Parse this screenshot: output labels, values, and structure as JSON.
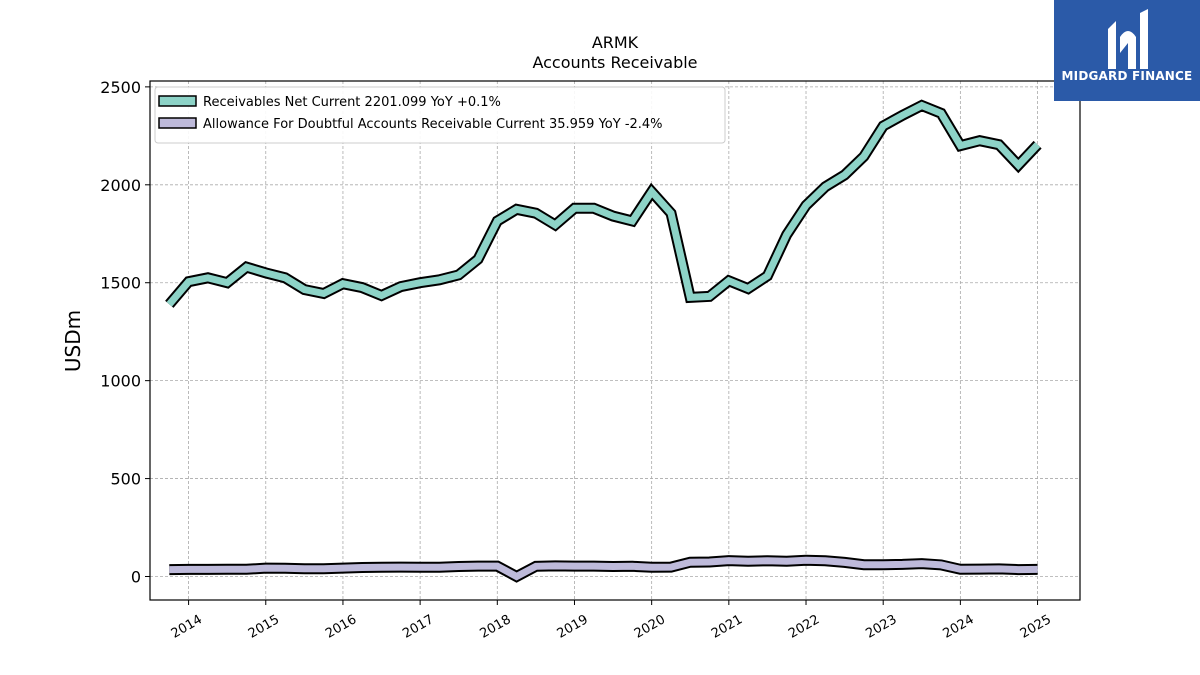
{
  "chart_data": {
    "type": "line",
    "title": "ARMK",
    "subtitle": "Accounts Receivable",
    "ylabel": "USDm",
    "xlabel": "",
    "ylim": [
      -120,
      2530
    ],
    "xlim": [
      2013.5,
      2025.55
    ],
    "yticks": [
      0,
      500,
      1000,
      1500,
      2000,
      2500
    ],
    "xticks": [
      "2014",
      "2015",
      "2016",
      "2017",
      "2018",
      "2019",
      "2020",
      "2021",
      "2022",
      "2023",
      "2024",
      "2025"
    ],
    "grid": true,
    "legend_position": "top-left",
    "series": [
      {
        "name": "Receivables Net Current  2201.099 YoY +0.1%",
        "color": "#8dd3c7",
        "x": [
          2013.75,
          2014.0,
          2014.25,
          2014.5,
          2014.75,
          2015.0,
          2015.25,
          2015.5,
          2015.75,
          2016.0,
          2016.25,
          2016.5,
          2016.75,
          2017.0,
          2017.25,
          2017.5,
          2017.75,
          2018.0,
          2018.25,
          2018.5,
          2018.75,
          2019.0,
          2019.25,
          2019.5,
          2019.75,
          2020.0,
          2020.25,
          2020.5,
          2020.75,
          2021.0,
          2021.25,
          2021.5,
          2021.75,
          2022.0,
          2022.25,
          2022.5,
          2022.75,
          2023.0,
          2023.25,
          2023.5,
          2023.75,
          2024.0,
          2024.25,
          2024.5,
          2024.75,
          2025.0
        ],
        "values": [
          1390,
          1505,
          1525,
          1500,
          1580,
          1550,
          1525,
          1465,
          1445,
          1495,
          1475,
          1435,
          1480,
          1500,
          1515,
          1540,
          1620,
          1815,
          1875,
          1855,
          1795,
          1880,
          1880,
          1840,
          1815,
          1965,
          1855,
          1425,
          1430,
          1510,
          1470,
          1535,
          1745,
          1895,
          1990,
          2050,
          2145,
          2300,
          2355,
          2405,
          2365,
          2200,
          2225,
          2205,
          2100,
          2205
        ]
      },
      {
        "name": "Allowance For Doubtful Accounts Receivable Current  35.959 YoY -2.4%",
        "color": "#bebada",
        "x": [
          2013.75,
          2014.0,
          2014.25,
          2014.5,
          2014.75,
          2015.0,
          2015.25,
          2015.5,
          2015.75,
          2016.0,
          2016.25,
          2016.5,
          2016.75,
          2017.0,
          2017.25,
          2017.5,
          2017.75,
          2018.0,
          2018.25,
          2018.5,
          2018.75,
          2019.0,
          2019.25,
          2019.5,
          2019.75,
          2020.0,
          2020.25,
          2020.5,
          2020.75,
          2021.0,
          2021.25,
          2021.5,
          2021.75,
          2022.0,
          2022.25,
          2022.5,
          2022.75,
          2023.0,
          2023.25,
          2023.5,
          2023.75,
          2024.0,
          2024.25,
          2024.5,
          2024.75,
          2025.0
        ],
        "values": [
          35,
          36,
          36,
          37,
          37,
          43,
          42,
          40,
          40,
          43,
          46,
          47,
          48,
          47,
          47,
          51,
          53,
          53,
          0,
          52,
          54,
          53,
          53,
          51,
          52,
          47,
          48,
          73,
          74,
          81,
          78,
          80,
          78,
          83,
          80,
          72,
          60,
          60,
          62,
          66,
          59,
          37,
          38,
          39,
          35,
          36
        ]
      }
    ]
  },
  "logo": {
    "text": "MIDGARD FINANCE"
  }
}
